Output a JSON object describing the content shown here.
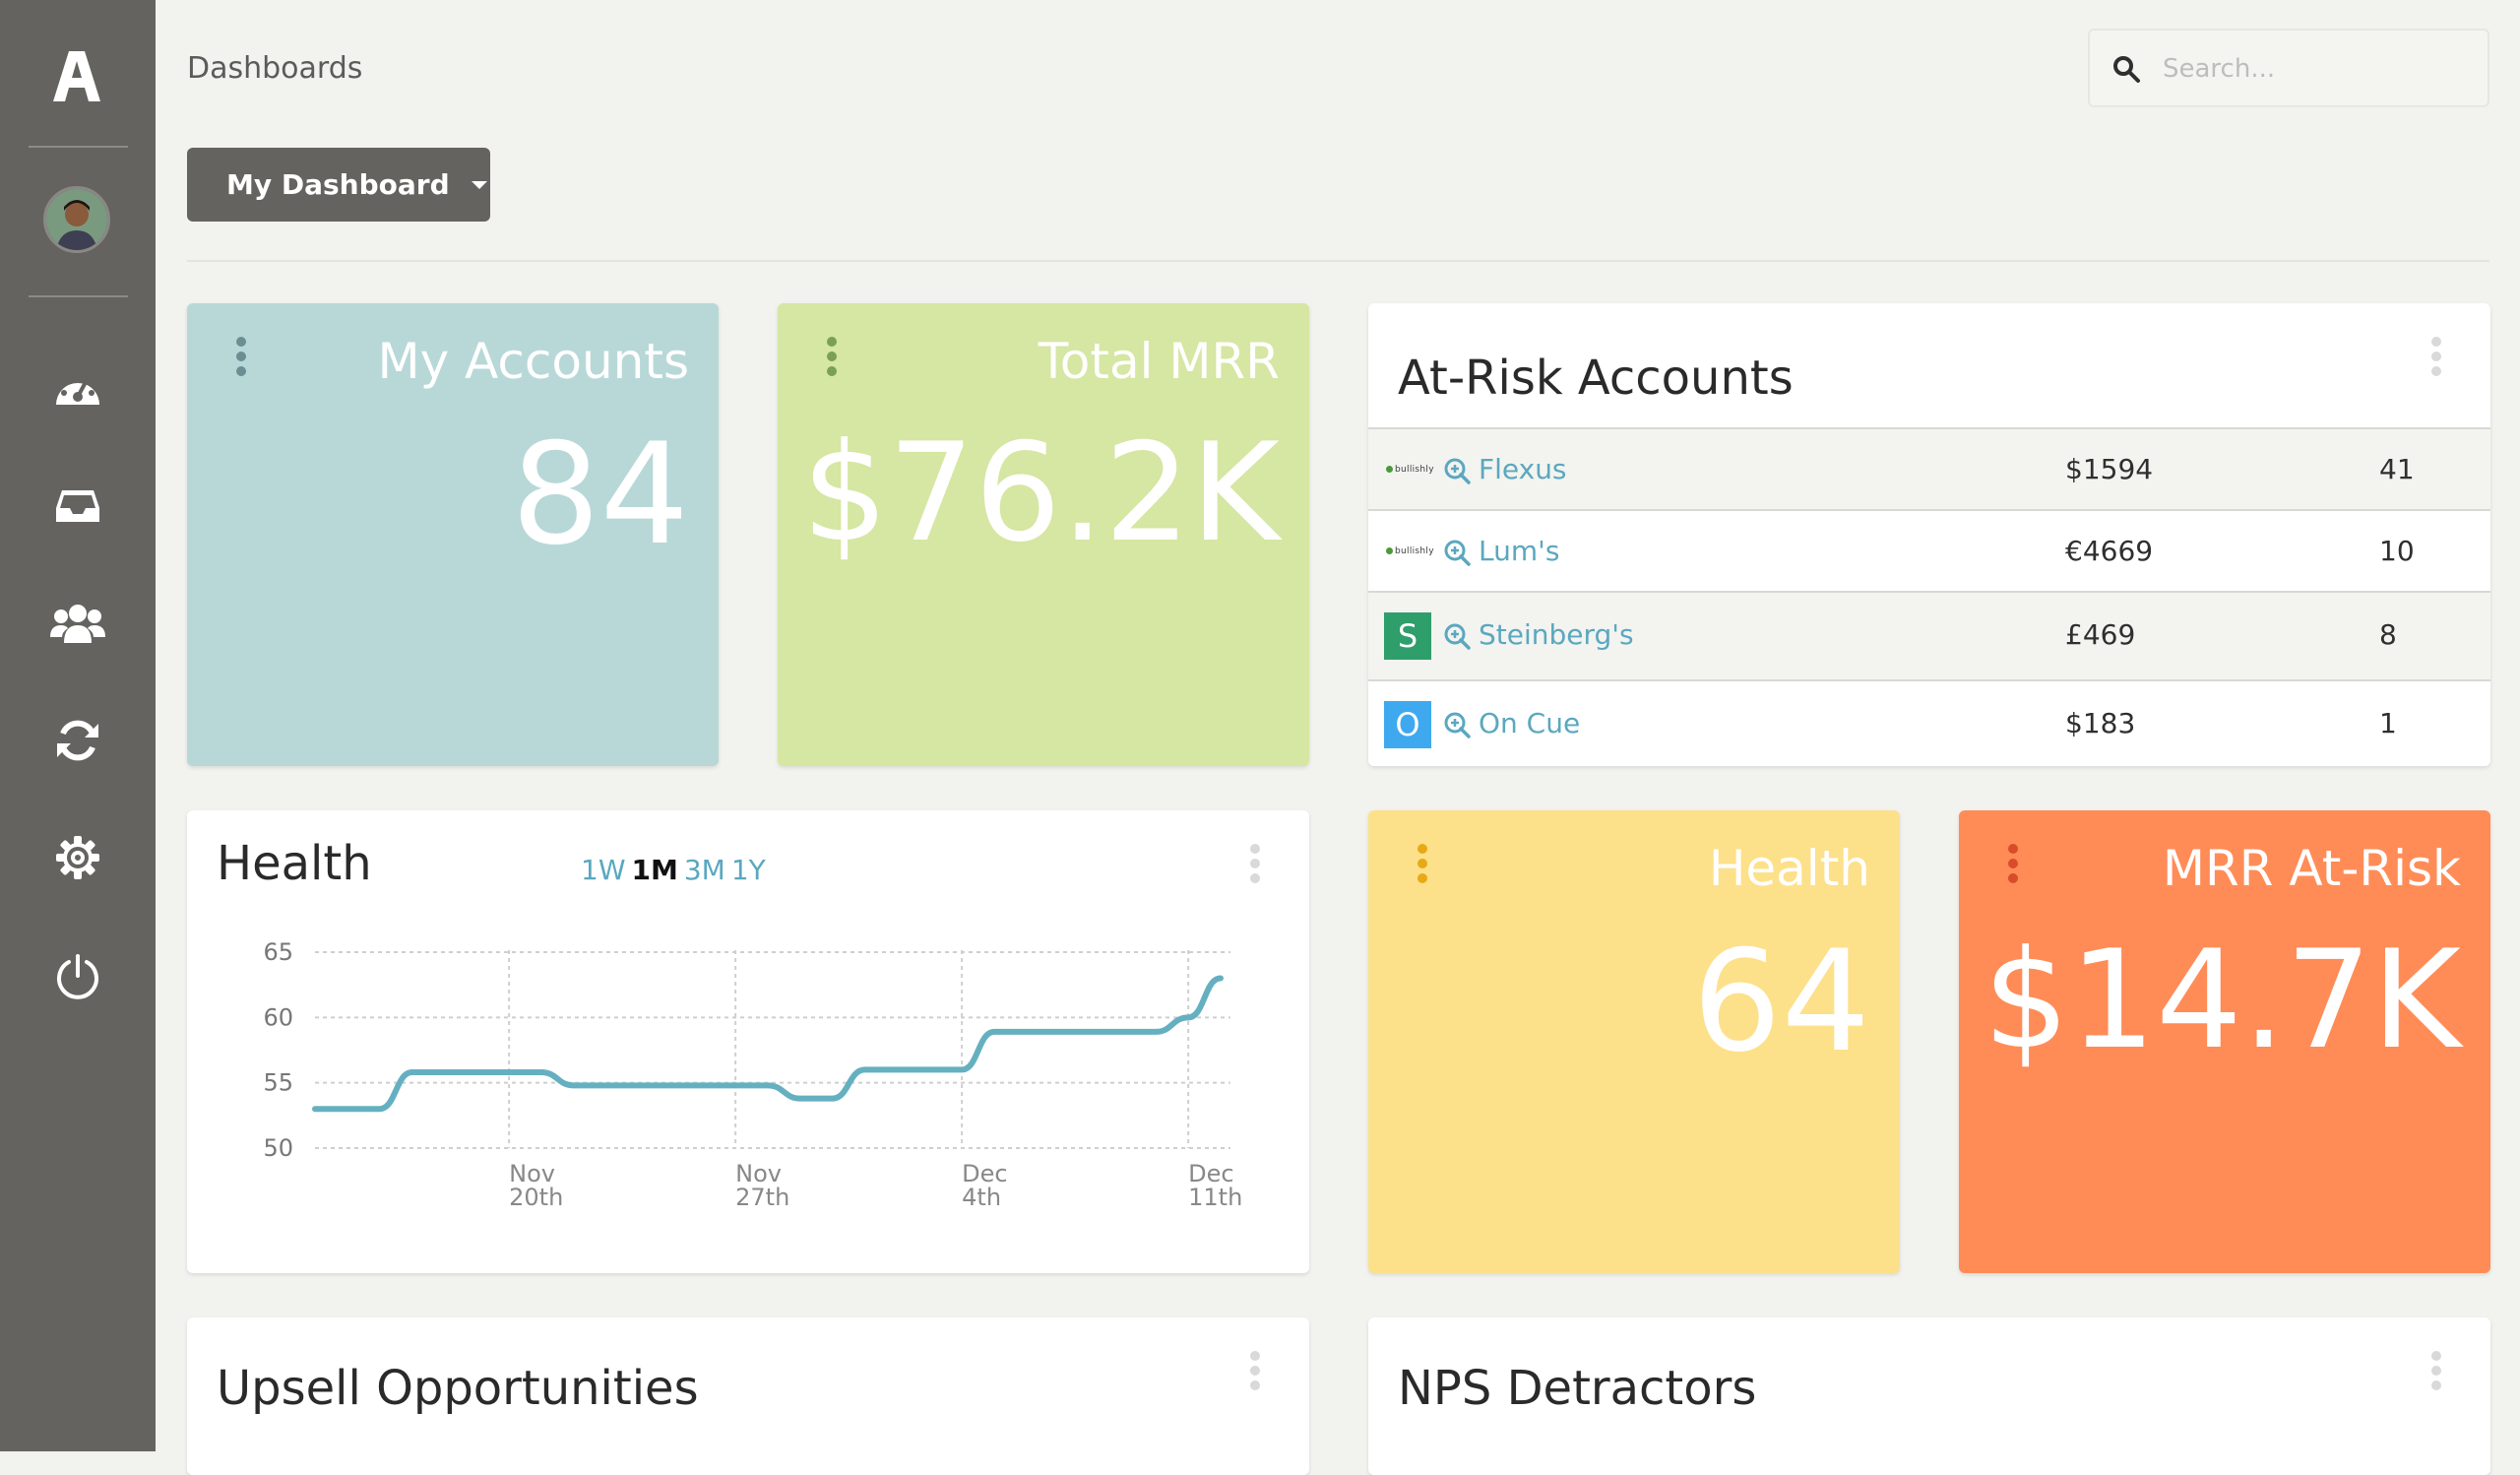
{
  "sidebar": {
    "logo": "A",
    "nav_icons": [
      "dashboard-icon",
      "inbox-icon",
      "users-icon",
      "refresh-icon",
      "gear-icon",
      "power-icon"
    ]
  },
  "header": {
    "breadcrumb": "Dashboards",
    "search_placeholder": "Search..."
  },
  "dashboard_select": {
    "label": "My Dashboard"
  },
  "colors": {
    "sidebar": "#65635f",
    "accounts_card": "#b8d8d8",
    "mrr_card": "#d6e6a3",
    "health_card": "#fde08a",
    "mrr_risk_card": "#ff8c57",
    "link": "#5aa8bf",
    "chart_line": "#65b0c0"
  },
  "cards": {
    "my_accounts": {
      "title": "My Accounts",
      "value": "84"
    },
    "total_mrr": {
      "title": "Total MRR",
      "value": "$76.2K"
    },
    "health_score": {
      "title": "Health",
      "value": "64"
    },
    "mrr_at_risk": {
      "title": "MRR At-Risk",
      "value": "$14.7K"
    }
  },
  "at_risk": {
    "title": "At-Risk Accounts",
    "rows": [
      {
        "logo": "bullishly",
        "name": "Flexus",
        "amount": "$1594",
        "count": "41"
      },
      {
        "logo": "bullishly",
        "name": "Lum's",
        "amount": "€4669",
        "count": "10"
      },
      {
        "logo": "S",
        "logo_color": "#2e9e6b",
        "name": "Steinberg's",
        "amount": "£469",
        "count": "8"
      },
      {
        "logo": "O",
        "logo_color": "#3fa9f0",
        "name": "On Cue",
        "amount": "$183",
        "count": "1"
      }
    ]
  },
  "health_chart": {
    "title": "Health",
    "ranges": [
      {
        "label": "1W",
        "active": false
      },
      {
        "label": "1M",
        "active": true
      },
      {
        "label": "3M",
        "active": false
      },
      {
        "label": "1Y",
        "active": false
      }
    ]
  },
  "chart_data": {
    "type": "line",
    "title": "Health",
    "xlabel": "",
    "ylabel": "",
    "ylim": [
      50,
      65
    ],
    "yticks": [
      50,
      55,
      60,
      65
    ],
    "xticks": [
      {
        "line1": "Nov",
        "line2": "20th",
        "x": 4
      },
      {
        "line1": "Nov",
        "line2": "27th",
        "x": 11
      },
      {
        "line1": "Dec",
        "line2": "4th",
        "x": 18
      },
      {
        "line1": "Dec",
        "line2": "11th",
        "x": 25
      }
    ],
    "grid": true,
    "x": [
      -2,
      0,
      1,
      2,
      3,
      4,
      5,
      6,
      7,
      8,
      9,
      10,
      11,
      12,
      13,
      14,
      15,
      16,
      17,
      18,
      19,
      20,
      21,
      22,
      23,
      24,
      25,
      26
    ],
    "values": [
      53,
      53,
      55.8,
      55.8,
      55.8,
      55.8,
      55.8,
      54.8,
      54.8,
      54.8,
      54.8,
      54.8,
      54.8,
      54.8,
      53.8,
      53.8,
      56,
      56,
      56,
      56,
      58.9,
      58.9,
      58.9,
      58.9,
      58.9,
      58.9,
      60,
      63
    ]
  },
  "upsell": {
    "title": "Upsell Opportunities"
  },
  "nps": {
    "title": "NPS Detractors"
  }
}
